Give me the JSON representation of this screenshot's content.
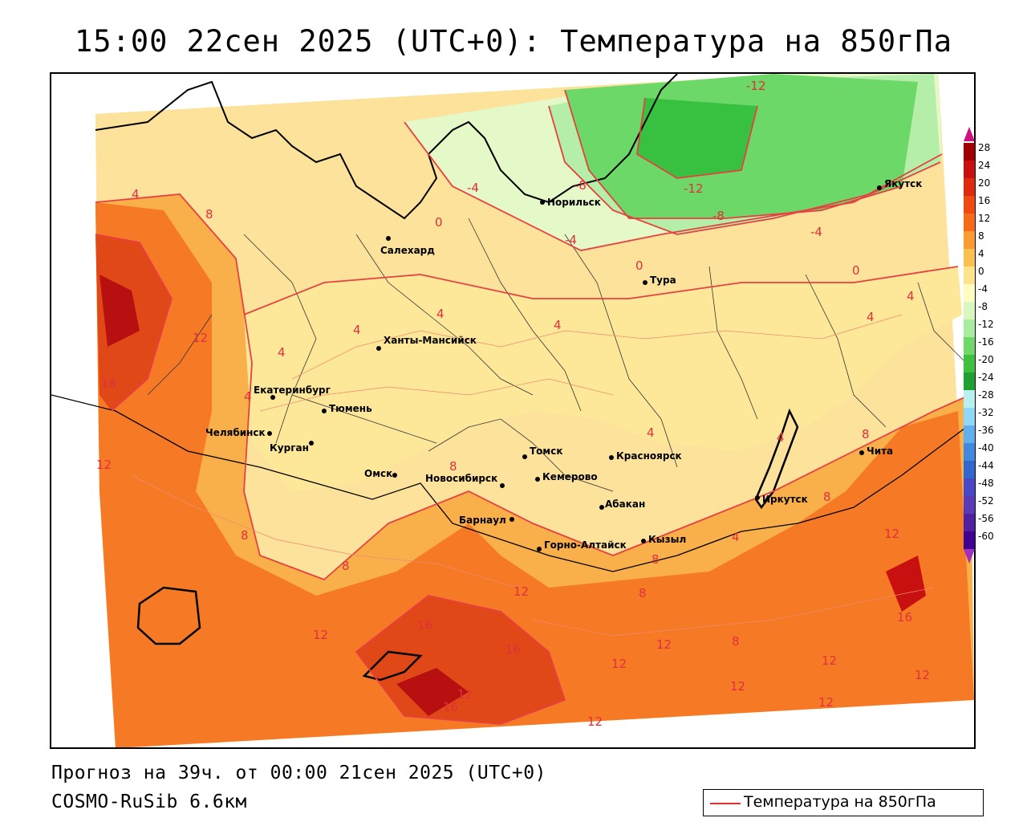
{
  "title": "15:00 22сен 2025 (UTC+0): Температура на 850гПа",
  "footer": {
    "forecast": "Прогноз на 39ч. от 00:00 21сен 2025 (UTC+0)",
    "model": "COSMO-RuSib 6.6км"
  },
  "legend": {
    "label": "Температура на 850гПа",
    "line_color": "#e03030"
  },
  "colorbar": {
    "ticks": [
      "28",
      "24",
      "20",
      "16",
      "12",
      "8",
      "4",
      "0",
      "-4",
      "-8",
      "-12",
      "-16",
      "-20",
      "-24",
      "-28",
      "-32",
      "-36",
      "-40",
      "-44",
      "-48",
      "-52",
      "-56",
      "-60"
    ],
    "colors": [
      "#a00000",
      "#c81010",
      "#e02a10",
      "#f04a10",
      "#f86a18",
      "#fa9a30",
      "#fcc050",
      "#fde48a",
      "#fffcc0",
      "#d8f8c0",
      "#a8eca0",
      "#70d868",
      "#40c040",
      "#20a030",
      "#b8f0f0",
      "#90d8f8",
      "#60b0f0",
      "#4088e0",
      "#3068d0",
      "#4848c8",
      "#5a3ab8",
      "#5020a0",
      "#400090"
    ]
  },
  "cities": [
    {
      "name": "Салехард"
    },
    {
      "name": "Норильск"
    },
    {
      "name": "Якутск"
    },
    {
      "name": "Тура"
    },
    {
      "name": "Ханты-Мансийск"
    },
    {
      "name": "Екатеринбург"
    },
    {
      "name": "Тюмень"
    },
    {
      "name": "Челябинск"
    },
    {
      "name": "Курган"
    },
    {
      "name": "Омск"
    },
    {
      "name": "Новосибирск"
    },
    {
      "name": "Томск"
    },
    {
      "name": "Кемерово"
    },
    {
      "name": "Красноярск"
    },
    {
      "name": "Абакан"
    },
    {
      "name": "Барнаул"
    },
    {
      "name": "Горно-Алтайск"
    },
    {
      "name": "Кызыл"
    },
    {
      "name": "Иркутск"
    },
    {
      "name": "Чита"
    }
  ],
  "isotherm_labels": [
    "-12",
    "-12",
    "-8",
    "-8",
    "-4",
    "-4",
    "-4",
    "0",
    "0",
    "0",
    "4",
    "4",
    "4",
    "4",
    "4",
    "4",
    "4",
    "4",
    "4",
    "4",
    "4",
    "8",
    "8",
    "8",
    "8",
    "8",
    "8",
    "8",
    "8",
    "8",
    "12",
    "12",
    "12",
    "12",
    "12",
    "12",
    "12",
    "12",
    "12",
    "12",
    "12",
    "12",
    "12",
    "16",
    "16",
    "16",
    "16",
    "16"
  ]
}
